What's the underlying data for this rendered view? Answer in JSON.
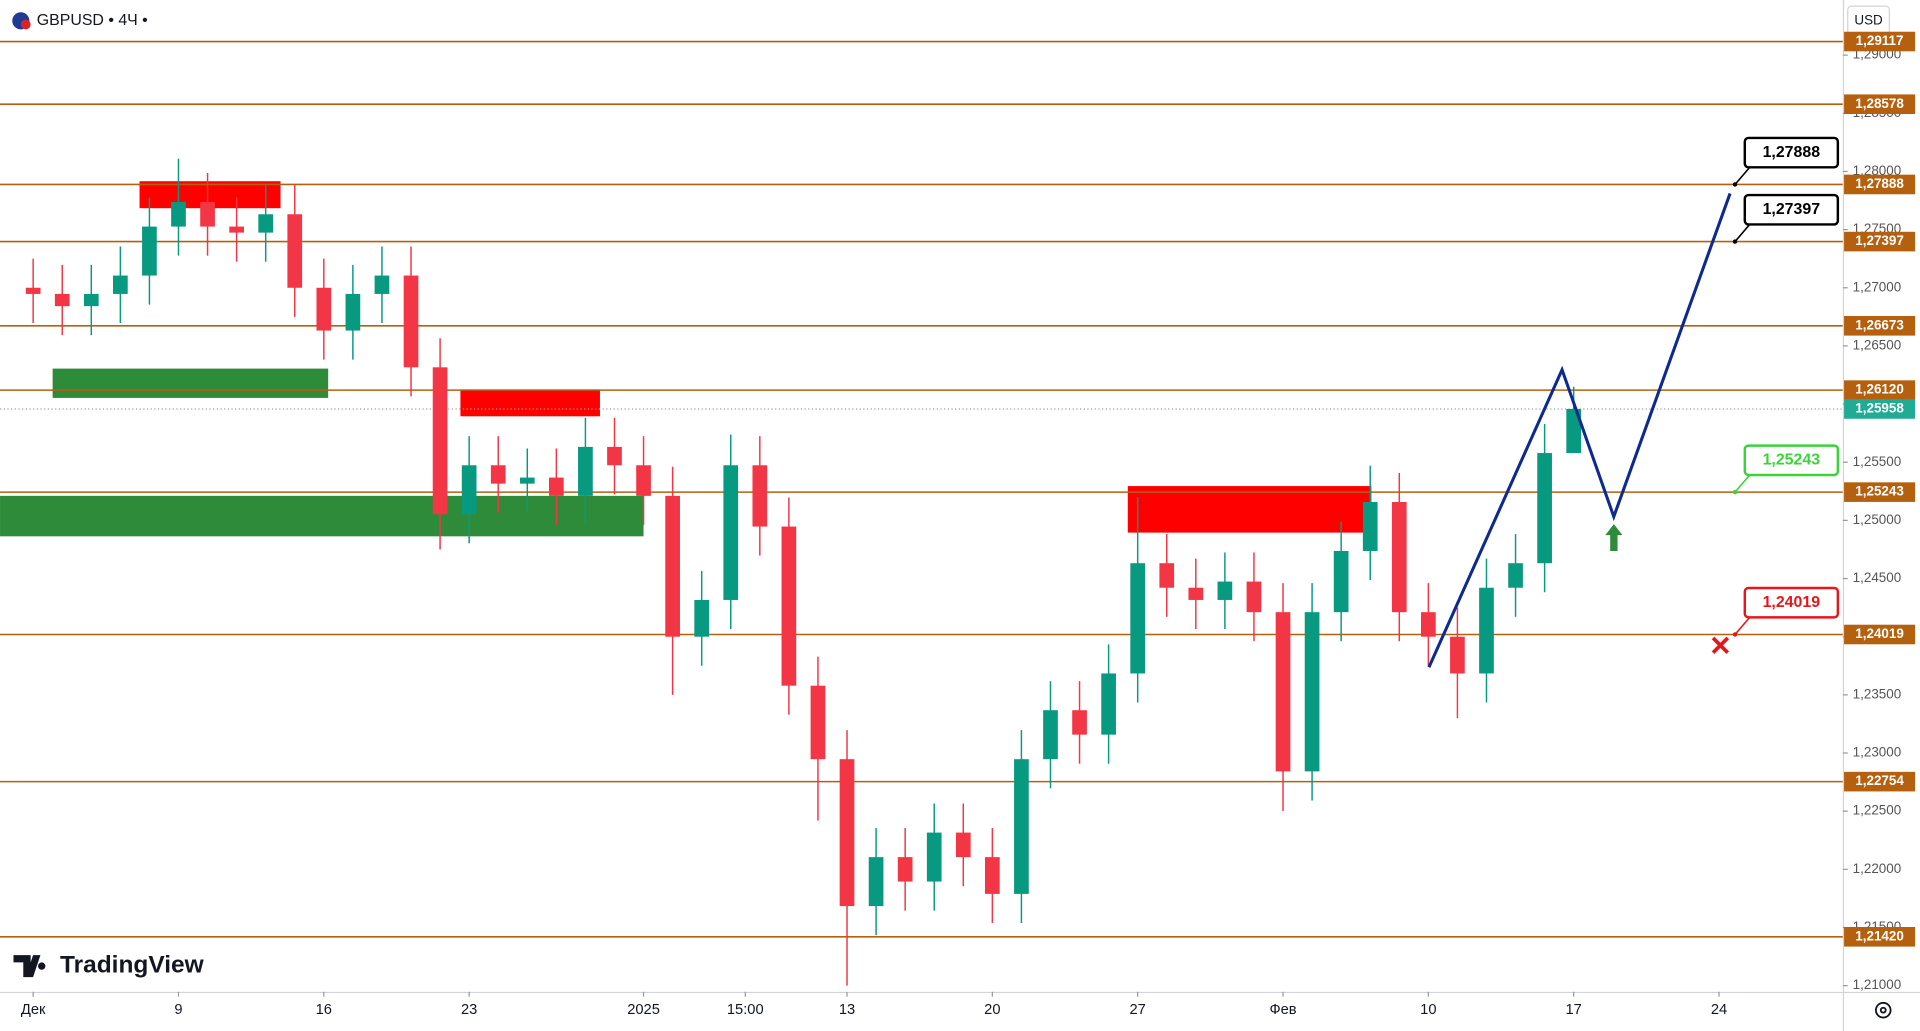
{
  "chart_data": {
    "type": "candlestick",
    "title": "GBPUSD • 4Ч •",
    "currency": "USD",
    "brand": "TradingView",
    "up_color": "#089981",
    "down_color": "#f23645",
    "xlim": [
      -1.14,
      62.26
    ],
    "ylim": [
      1.20947,
      1.29474
    ],
    "grid": false,
    "xticks": [
      {
        "value": 0,
        "label": "Дек"
      },
      {
        "value": 5,
        "label": "9"
      },
      {
        "value": 10,
        "label": "16"
      },
      {
        "value": 15,
        "label": "23"
      },
      {
        "value": 21,
        "label": "2025"
      },
      {
        "value": 24.5,
        "label": "15:00"
      },
      {
        "value": 28,
        "label": "13"
      },
      {
        "value": 33,
        "label": "20"
      },
      {
        "value": 38,
        "label": "27"
      },
      {
        "value": 43,
        "label": "Фев"
      },
      {
        "value": 48,
        "label": "10"
      },
      {
        "value": 53,
        "label": "17"
      },
      {
        "value": 58,
        "label": "24"
      }
    ],
    "yticks": [
      {
        "value": 1.21,
        "label": "1,21000"
      },
      {
        "value": 1.215,
        "label": "1,21500"
      },
      {
        "value": 1.22,
        "label": "1,22000"
      },
      {
        "value": 1.225,
        "label": "1,22500"
      },
      {
        "value": 1.23,
        "label": "1,23000"
      },
      {
        "value": 1.235,
        "label": "1,23500"
      },
      {
        "value": 1.24,
        "label": "1,24000"
      },
      {
        "value": 1.245,
        "label": "1,24500"
      },
      {
        "value": 1.25,
        "label": "1,25000"
      },
      {
        "value": 1.255,
        "label": "1,25500"
      },
      {
        "value": 1.26,
        "label": "1,26000"
      },
      {
        "value": 1.265,
        "label": "1,26500"
      },
      {
        "value": 1.27,
        "label": "1,27000"
      },
      {
        "value": 1.275,
        "label": "1,27500"
      },
      {
        "value": 1.28,
        "label": "1,28000"
      },
      {
        "value": 1.285,
        "label": "1,28500"
      },
      {
        "value": 1.29,
        "label": "1,29000"
      }
    ],
    "x": [
      0,
      1,
      2,
      3,
      4,
      5,
      6,
      7,
      8,
      9,
      10,
      11,
      12,
      13,
      14,
      15,
      16,
      17,
      18,
      19,
      20,
      21,
      22,
      23,
      24,
      25,
      26,
      27,
      28,
      29,
      30,
      31,
      32,
      33,
      34,
      35,
      36,
      37,
      38,
      39,
      40,
      41,
      42,
      43,
      44,
      45,
      46,
      47,
      48,
      49,
      50,
      51,
      52,
      53
    ],
    "open": [
      1.27,
      1.26947,
      1.26842,
      1.26947,
      1.27105,
      1.27526,
      1.27737,
      1.27526,
      1.27474,
      1.27632,
      1.27,
      1.26632,
      1.26947,
      1.27105,
      1.26316,
      1.25053,
      1.25474,
      1.25316,
      1.25368,
      1.25211,
      1.25632,
      1.25474,
      1.25211,
      1.24,
      1.24316,
      1.25474,
      1.24947,
      1.23579,
      1.22947,
      1.21684,
      1.22105,
      1.21895,
      1.22316,
      1.22105,
      1.21789,
      1.22947,
      1.23368,
      1.23158,
      1.23684,
      1.24632,
      1.24421,
      1.24316,
      1.24474,
      1.24211,
      1.22842,
      1.24211,
      1.24737,
      1.25158,
      1.24211,
      1.24,
      1.23684,
      1.24421,
      1.24632,
      1.25579
    ],
    "high": [
      1.2725,
      1.27197,
      1.27197,
      1.27355,
      1.27776,
      1.2811,
      1.27987,
      1.27776,
      1.27882,
      1.27882,
      1.2725,
      1.27197,
      1.27355,
      1.27355,
      1.26566,
      1.25724,
      1.25724,
      1.25618,
      1.25618,
      1.25882,
      1.25882,
      1.25724,
      1.25461,
      1.24566,
      1.25737,
      1.25724,
      1.25197,
      1.23829,
      1.23197,
      1.22355,
      1.22355,
      1.22566,
      1.22566,
      1.22355,
      1.23197,
      1.23618,
      1.23618,
      1.23934,
      1.252,
      1.24882,
      1.24671,
      1.24724,
      1.24724,
      1.24461,
      1.24461,
      1.24987,
      1.2547,
      1.25408,
      1.24461,
      1.2425,
      1.24671,
      1.24882,
      1.25829,
      1.2615
    ],
    "low": [
      1.26697,
      1.26592,
      1.26592,
      1.26697,
      1.26855,
      1.27276,
      1.27276,
      1.27224,
      1.27224,
      1.2675,
      1.26382,
      1.26382,
      1.26697,
      1.26066,
      1.2475,
      1.24803,
      1.25066,
      1.25066,
      1.24961,
      1.24961,
      1.25224,
      1.24961,
      1.235,
      1.2375,
      1.24066,
      1.24697,
      1.23329,
      1.2242,
      1.21,
      1.21434,
      1.21645,
      1.21645,
      1.21855,
      1.21539,
      1.21539,
      1.22697,
      1.22908,
      1.22908,
      1.23434,
      1.24171,
      1.24066,
      1.24066,
      1.23961,
      1.225,
      1.22592,
      1.23961,
      1.24487,
      1.23961,
      1.2375,
      1.233,
      1.23434,
      1.24171,
      1.24382,
      1.256
    ],
    "close": [
      1.26947,
      1.26842,
      1.26947,
      1.27105,
      1.27526,
      1.27737,
      1.27526,
      1.27474,
      1.27632,
      1.27,
      1.26632,
      1.26947,
      1.27105,
      1.26316,
      1.25053,
      1.25474,
      1.25316,
      1.25368,
      1.25211,
      1.25632,
      1.25474,
      1.25211,
      1.24,
      1.24316,
      1.25474,
      1.24947,
      1.23579,
      1.22947,
      1.21684,
      1.22105,
      1.21895,
      1.22316,
      1.22105,
      1.21789,
      1.22947,
      1.23368,
      1.23158,
      1.23684,
      1.24632,
      1.24421,
      1.24316,
      1.24474,
      1.24211,
      1.22842,
      1.24211,
      1.24737,
      1.25158,
      1.24211,
      1.24,
      1.23684,
      1.24421,
      1.24632,
      1.25579,
      1.25958
    ],
    "level_color": "#b5600e",
    "levels": [
      {
        "value": 1.29117,
        "label": "1,29117"
      },
      {
        "value": 1.28578,
        "label": "1,28578"
      },
      {
        "value": 1.27888,
        "label": "1,27888"
      },
      {
        "value": 1.27397,
        "label": "1,27397"
      },
      {
        "value": 1.26673,
        "label": "1,26673"
      },
      {
        "value": 1.2612,
        "label": "1,26120"
      },
      {
        "value": 1.25243,
        "label": "1,25243"
      },
      {
        "value": 1.24019,
        "label": "1,24019"
      },
      {
        "value": 1.22754,
        "label": "1,22754"
      },
      {
        "value": 1.2142,
        "label": "1,21420"
      }
    ],
    "current_price": {
      "value": 1.25958,
      "label": "1,25958",
      "color": "#22ab94"
    },
    "zones": [
      {
        "color": "#ff0000",
        "x": [
          3.66,
          8.51
        ],
        "y": [
          1.27684,
          1.27916
        ]
      },
      {
        "color": "#2e8b3a",
        "x": [
          0.67,
          10.15
        ],
        "y": [
          1.26053,
          1.26305
        ]
      },
      {
        "color": "#ff0000",
        "x": [
          14.7,
          19.5
        ],
        "y": [
          1.25895,
          1.26126
        ]
      },
      {
        "color": "#2e8b3a",
        "x": [
          -1.14,
          21.0
        ],
        "y": [
          1.24863,
          1.25211
        ]
      },
      {
        "color": "#ff0000",
        "x": [
          37.66,
          46.04
        ],
        "y": [
          1.24895,
          1.25295
        ]
      }
    ],
    "projection": {
      "color": "#0d2a8f",
      "x": [
        48.02,
        52.6,
        54.38,
        58.38
      ],
      "values": [
        1.23737,
        1.26295,
        1.25032,
        1.27811
      ]
    },
    "annotations": [
      {
        "value": 1.27888,
        "label": "1,27888",
        "x": 58.55,
        "color": "#000000"
      },
      {
        "value": 1.27397,
        "label": "1,27397",
        "x": 58.55,
        "color": "#000000"
      },
      {
        "value": 1.25243,
        "label": "1,25243",
        "x": 58.55,
        "color": "#3ad43a"
      },
      {
        "value": 1.24019,
        "label": "1,24019",
        "x": 58.55,
        "color": "#e8161b"
      }
    ]
  }
}
